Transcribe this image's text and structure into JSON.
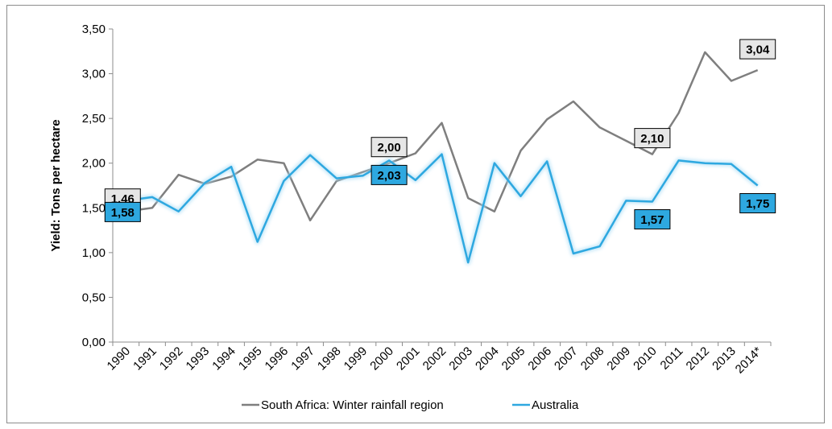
{
  "chart_data": {
    "type": "line",
    "title": "",
    "xlabel": "",
    "ylabel": "Yield: Tons per hectare",
    "ylim": [
      0,
      3.5
    ],
    "yticks": [
      "0,00",
      "0,50",
      "1,00",
      "1,50",
      "2,00",
      "2,50",
      "3,00",
      "3,50"
    ],
    "grid": false,
    "legend": "bottom",
    "categories": [
      "1990",
      "1991",
      "1992",
      "1993",
      "1994",
      "1995",
      "1996",
      "1997",
      "1998",
      "1999",
      "2000",
      "2001",
      "2002",
      "2003",
      "2004",
      "2005",
      "2006",
      "2007",
      "2008",
      "2009",
      "2010",
      "2011",
      "2012",
      "2013",
      "2014*"
    ],
    "series": [
      {
        "name": "South Africa: Winter rainfall region",
        "color": "#7f7f7f",
        "values": [
          1.46,
          1.5,
          1.87,
          1.77,
          1.85,
          2.04,
          2.0,
          1.36,
          1.8,
          1.9,
          2.0,
          2.11,
          2.45,
          1.61,
          1.46,
          2.14,
          2.49,
          2.69,
          2.4,
          2.25,
          2.1,
          2.56,
          3.24,
          2.92,
          3.04
        ],
        "data_labels": [
          {
            "index": 0,
            "text": "1,46"
          },
          {
            "index": 10,
            "text": "2,00"
          },
          {
            "index": 20,
            "text": "2,10"
          },
          {
            "index": 24,
            "text": "3,04"
          }
        ]
      },
      {
        "name": "Australia",
        "color": "#2ea8e0",
        "values": [
          1.58,
          1.62,
          1.46,
          1.78,
          1.96,
          1.12,
          1.8,
          2.09,
          1.83,
          1.86,
          2.03,
          1.81,
          2.1,
          0.89,
          2.0,
          1.63,
          2.02,
          0.99,
          1.07,
          1.58,
          1.57,
          2.03,
          2.0,
          1.99,
          1.75
        ],
        "data_labels": [
          {
            "index": 0,
            "text": "1,58"
          },
          {
            "index": 10,
            "text": "2,03"
          },
          {
            "index": 20,
            "text": "1,57"
          },
          {
            "index": 24,
            "text": "1,75"
          }
        ]
      }
    ]
  }
}
